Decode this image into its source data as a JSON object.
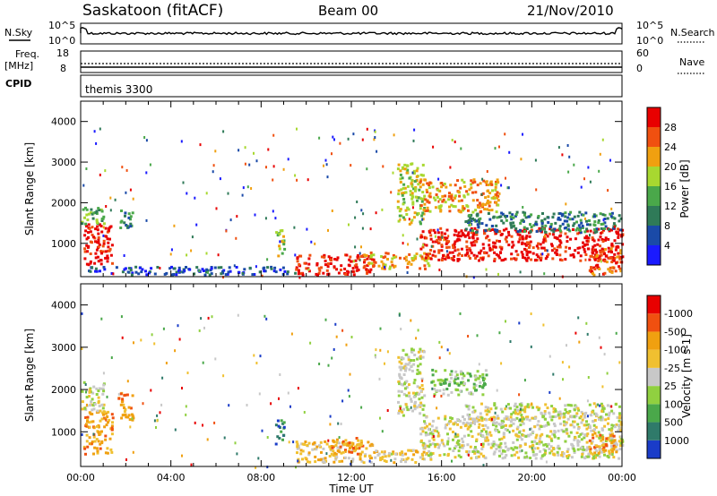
{
  "header": {
    "station": "Saskatoon (fitACF)",
    "beam": "Beam 00",
    "date": "21/Nov/2010"
  },
  "top_panels": {
    "nsky_label": "N.Sky",
    "nsky_ticks": [
      "10^5",
      "10^0"
    ],
    "nsearch_label": "N.Search",
    "nsearch_ticks": [
      "10^5",
      "10^0"
    ],
    "freq_label_1": "Freq.",
    "freq_label_2": "[MHz]",
    "freq_ticks": [
      "18",
      "8"
    ],
    "nave_label": "Nave",
    "nave_ticks": [
      "60",
      "0"
    ],
    "cpid_label": "CPID",
    "cpid_name": "themis 3300"
  },
  "chart_data": [
    {
      "type": "heatmap",
      "title": "",
      "quantity": "Power",
      "ylabel": "Slant Range [km]",
      "xlabel": "",
      "ylim": [
        180,
        4500
      ],
      "yticks": [
        1000,
        2000,
        3000,
        4000
      ],
      "xlim": [
        0,
        24
      ],
      "colorbar_label": "Power [dB]",
      "colorbar_ticks": [
        "4",
        "8",
        "12",
        "16",
        "20",
        "24",
        "28"
      ],
      "colors": [
        "#1a1aff",
        "#1a4aa8",
        "#2f7a58",
        "#4aa84a",
        "#a8d830",
        "#f0a010",
        "#f05010",
        "#e80000"
      ],
      "regions": [
        {
          "t0": 0.1,
          "t1": 1.4,
          "r0": 500,
          "r1": 1500,
          "level": 7
        },
        {
          "t0": 0.0,
          "t1": 1.0,
          "r0": 1500,
          "r1": 2000,
          "level": 3
        },
        {
          "t0": 1.7,
          "t1": 2.3,
          "r0": 1400,
          "r1": 1900,
          "level": 2
        },
        {
          "t0": 0.3,
          "t1": 9.5,
          "r0": 250,
          "r1": 450,
          "level": 1
        },
        {
          "t0": 8.6,
          "t1": 9.0,
          "r0": 700,
          "r1": 1400,
          "level": 4
        },
        {
          "t0": 9.5,
          "t1": 13.0,
          "r0": 250,
          "r1": 750,
          "level": 7
        },
        {
          "t0": 12.5,
          "t1": 15.5,
          "r0": 400,
          "r1": 800,
          "level": 5
        },
        {
          "t0": 14.0,
          "t1": 15.2,
          "r0": 1500,
          "r1": 3000,
          "level": 4
        },
        {
          "t0": 15.0,
          "t1": 18.5,
          "r0": 1800,
          "r1": 2600,
          "level": 5
        },
        {
          "t0": 15.0,
          "t1": 24.0,
          "r0": 600,
          "r1": 1400,
          "level": 7
        },
        {
          "t0": 17.0,
          "t1": 24.0,
          "r0": 1300,
          "r1": 1800,
          "level": 2
        },
        {
          "t0": 22.5,
          "t1": 24.0,
          "r0": 250,
          "r1": 900,
          "level": 6
        }
      ]
    },
    {
      "type": "heatmap",
      "title": "",
      "quantity": "Velocity",
      "ylabel": "Slant Range [km]",
      "xlabel": "Time UT",
      "ylim": [
        180,
        4500
      ],
      "yticks": [
        1000,
        2000,
        3000,
        4000
      ],
      "xlim": [
        0,
        24
      ],
      "xticks": [
        "00:00",
        "04:00",
        "08:00",
        "12:00",
        "16:00",
        "20:00",
        "00:00"
      ],
      "colorbar_label": "Velocity [m s-1]",
      "colorbar_ticks": [
        "1000",
        "500",
        "100",
        "25",
        "-25",
        "-100",
        "-500",
        "-1000"
      ],
      "colors": [
        "#1a3cc8",
        "#2f7a6a",
        "#4aa84a",
        "#90d040",
        "#c8c8c8",
        "#f0c030",
        "#f0a010",
        "#f05010",
        "#e80000"
      ],
      "regions": [
        {
          "t0": 0.1,
          "t1": 1.4,
          "r0": 500,
          "r1": 1500,
          "level": 6
        },
        {
          "t0": 1.6,
          "t1": 2.3,
          "r0": 1300,
          "r1": 2000,
          "level": 6
        },
        {
          "t0": 0.0,
          "t1": 1.0,
          "r0": 1500,
          "r1": 2200,
          "level": 4
        },
        {
          "t0": 8.6,
          "t1": 9.0,
          "r0": 700,
          "r1": 1300,
          "level": 1
        },
        {
          "t0": 9.5,
          "t1": 13.0,
          "r0": 300,
          "r1": 800,
          "level": 5
        },
        {
          "t0": 11.0,
          "t1": 12.5,
          "r0": 500,
          "r1": 900,
          "level": 6
        },
        {
          "t0": 13.0,
          "t1": 15.5,
          "r0": 300,
          "r1": 600,
          "level": 5
        },
        {
          "t0": 14.0,
          "t1": 15.2,
          "r0": 1400,
          "r1": 3000,
          "level": 4
        },
        {
          "t0": 15.5,
          "t1": 18.0,
          "r0": 1900,
          "r1": 2500,
          "level": 3
        },
        {
          "t0": 15.0,
          "t1": 24.0,
          "r0": 400,
          "r1": 1400,
          "level": 4
        },
        {
          "t0": 17.0,
          "t1": 24.0,
          "r0": 1300,
          "r1": 1700,
          "level": 4
        },
        {
          "t0": 22.5,
          "t1": 23.8,
          "r0": 500,
          "r1": 1000,
          "level": 6
        }
      ]
    }
  ]
}
